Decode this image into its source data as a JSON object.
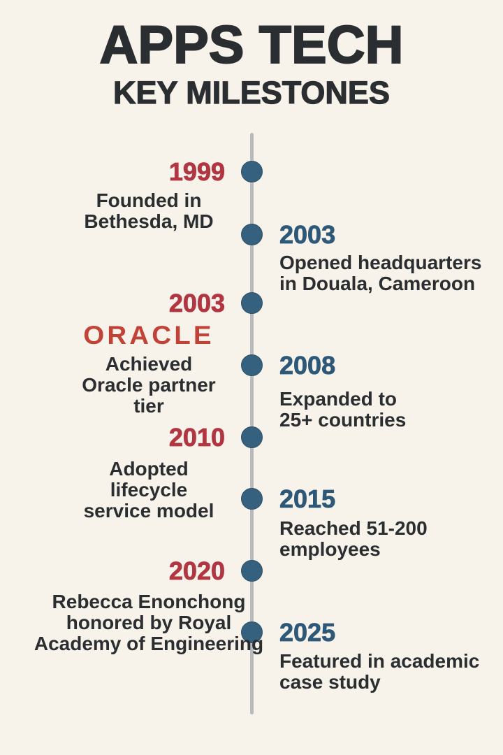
{
  "header": {
    "title": "APPS TECH",
    "subtitle": "KEY MILESTONES"
  },
  "colors": {
    "bg": "#f7f3ea",
    "dark": "#2b2e30",
    "red": "#b23642",
    "blue": "#2e5878",
    "dot": "#36617e",
    "line": "#b9babc",
    "oracle": "#c14338"
  },
  "oracle_logo": "ORACLE",
  "milestones": [
    {
      "year": "1999",
      "side": "left",
      "accent": "red",
      "description": "Founded in\nBethesda, MD"
    },
    {
      "year": "2003",
      "side": "right",
      "accent": "blue",
      "description": "Opened headquarters\nin Douala, Cameroon"
    },
    {
      "year": "2003",
      "side": "left",
      "accent": "red",
      "description": "Achieved\nOracle partner\ntier"
    },
    {
      "year": "2008",
      "side": "right",
      "accent": "blue",
      "description": "Expanded to\n25+ countries"
    },
    {
      "year": "2010",
      "side": "left",
      "accent": "red",
      "description": "Adopted\nlifecycle\nservice model"
    },
    {
      "year": "2015",
      "side": "right",
      "accent": "blue",
      "description": "Reached 51-200\nemployees"
    },
    {
      "year": "2020",
      "side": "left",
      "accent": "red",
      "description": "Rebecca Enonchong\nhonored by Royal\nAcademy of Engineering"
    },
    {
      "year": "2025",
      "side": "right",
      "accent": "blue",
      "description": "Featured in academic\ncase study"
    }
  ]
}
